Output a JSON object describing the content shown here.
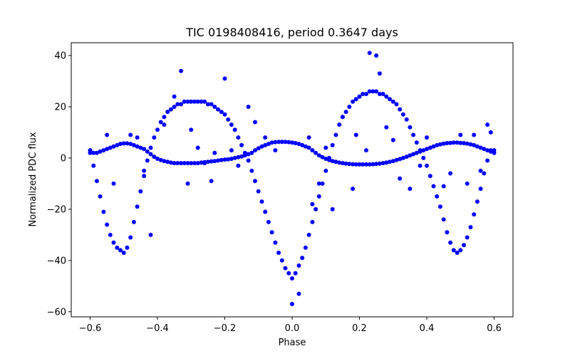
{
  "chart_data": {
    "type": "scatter",
    "title": "TIC 0198408416, period 0.3647 days",
    "xlabel": "Phase",
    "ylabel": "Normalized PDC flux",
    "xlim": [
      -0.656,
      0.656
    ],
    "ylim": [
      -62,
      45
    ],
    "xticks": [
      -0.6,
      -0.4,
      -0.2,
      0.0,
      0.2,
      0.4,
      0.6
    ],
    "xtick_labels": [
      "−0.6",
      "−0.4",
      "−0.2",
      "0.0",
      "0.2",
      "0.4",
      "0.6"
    ],
    "yticks": [
      -60,
      -40,
      -20,
      0,
      20,
      40
    ],
    "ytick_labels": [
      "−60",
      "−40",
      "−20",
      "0",
      "20",
      "40"
    ],
    "grid": false,
    "marker_color": "#0000ff",
    "series": [
      {
        "role": "main eclipse branch",
        "x": [
          -0.6,
          -0.59,
          -0.58,
          -0.57,
          -0.56,
          -0.55,
          -0.54,
          -0.53,
          -0.52,
          -0.51,
          -0.5,
          -0.49,
          -0.48,
          -0.47,
          -0.46,
          -0.45,
          -0.44,
          -0.43,
          -0.42,
          -0.41,
          -0.4,
          -0.39,
          -0.38,
          -0.37,
          -0.36,
          -0.35,
          -0.34,
          -0.33,
          -0.32,
          -0.31,
          -0.3,
          -0.29,
          -0.28,
          -0.27,
          -0.26,
          -0.25,
          -0.24,
          -0.23,
          -0.22,
          -0.21,
          -0.2,
          -0.19,
          -0.18,
          -0.17,
          -0.16,
          -0.15,
          -0.14,
          -0.13,
          -0.12,
          -0.11,
          -0.1,
          -0.09,
          -0.08,
          -0.07,
          -0.06,
          -0.05,
          -0.04,
          -0.03,
          -0.02,
          -0.01,
          0.0,
          0.01,
          0.02,
          0.03,
          0.04,
          0.05,
          0.06,
          0.07,
          0.08,
          0.09,
          0.1,
          0.11,
          0.12,
          0.13,
          0.14,
          0.15,
          0.16,
          0.17,
          0.18,
          0.19,
          0.2,
          0.21,
          0.22,
          0.23,
          0.24,
          0.25,
          0.26,
          0.27,
          0.28,
          0.29,
          0.3,
          0.31,
          0.32,
          0.33,
          0.34,
          0.35,
          0.36,
          0.37,
          0.38,
          0.39,
          0.4,
          0.41,
          0.42,
          0.43,
          0.44,
          0.45,
          0.46,
          0.47,
          0.48,
          0.49,
          0.5,
          0.51,
          0.52,
          0.53,
          0.54,
          0.55,
          0.56,
          0.57,
          0.58,
          0.59,
          0.6
        ],
        "y": [
          3,
          -3,
          -9,
          -15,
          -21,
          -26,
          -30,
          -33,
          -35,
          -36,
          -37,
          -35,
          -31,
          -25,
          -19,
          -13,
          -7,
          -1,
          4,
          8,
          11,
          14,
          16,
          18,
          19,
          20,
          21,
          21,
          22,
          22,
          22,
          22,
          22,
          22,
          22,
          21,
          21,
          20,
          19,
          18,
          17,
          15,
          13,
          11,
          8,
          5,
          2,
          -1,
          -5,
          -9,
          -13,
          -17,
          -21,
          -25,
          -29,
          -33,
          -37,
          -40,
          -43,
          -45,
          -47,
          -45,
          -42,
          -39,
          -35,
          -30,
          -25,
          -20,
          -15,
          -10,
          -5,
          0,
          5,
          9,
          13,
          16,
          18,
          20,
          22,
          23,
          24,
          25,
          25,
          26,
          26,
          26,
          25,
          25,
          24,
          23,
          22,
          21,
          19,
          17,
          15,
          12,
          9,
          6,
          3,
          0,
          -3,
          -7,
          -11,
          -15,
          -19,
          -24,
          -29,
          -33,
          -36,
          -37,
          -36,
          -34,
          -31,
          -27,
          -22,
          -17,
          -12,
          -6,
          -1,
          3,
          3
        ]
      },
      {
        "role": "secondary flat branch",
        "x": [
          -0.6,
          -0.59,
          -0.58,
          -0.57,
          -0.56,
          -0.55,
          -0.54,
          -0.53,
          -0.52,
          -0.51,
          -0.5,
          -0.49,
          -0.48,
          -0.47,
          -0.46,
          -0.45,
          -0.44,
          -0.43,
          -0.42,
          -0.41,
          -0.4,
          -0.39,
          -0.38,
          -0.37,
          -0.36,
          -0.35,
          -0.34,
          -0.33,
          -0.32,
          -0.31,
          -0.3,
          -0.29,
          -0.28,
          -0.27,
          -0.26,
          -0.25,
          -0.24,
          -0.23,
          -0.22,
          -0.21,
          -0.2,
          -0.19,
          -0.18,
          -0.17,
          -0.16,
          -0.15,
          -0.14,
          -0.13,
          -0.12,
          -0.11,
          -0.1,
          -0.09,
          -0.08,
          -0.07,
          -0.06,
          -0.05,
          -0.04,
          -0.03,
          -0.02,
          -0.01,
          0.0,
          0.01,
          0.02,
          0.03,
          0.04,
          0.05,
          0.06,
          0.07,
          0.08,
          0.09,
          0.1,
          0.11,
          0.12,
          0.13,
          0.14,
          0.15,
          0.16,
          0.17,
          0.18,
          0.19,
          0.2,
          0.21,
          0.22,
          0.23,
          0.24,
          0.25,
          0.26,
          0.27,
          0.28,
          0.29,
          0.3,
          0.31,
          0.32,
          0.33,
          0.34,
          0.35,
          0.36,
          0.37,
          0.38,
          0.39,
          0.4,
          0.41,
          0.42,
          0.43,
          0.44,
          0.45,
          0.46,
          0.47,
          0.48,
          0.49,
          0.5,
          0.51,
          0.52,
          0.53,
          0.54,
          0.55,
          0.56,
          0.57,
          0.58,
          0.59,
          0.6
        ],
        "y": [
          2,
          2,
          2,
          2.5,
          3,
          3.5,
          4,
          4.5,
          5,
          5.5,
          5.7,
          5.7,
          5.5,
          5,
          4.5,
          4,
          3.5,
          2.5,
          1.5,
          0.5,
          -0.3,
          -0.8,
          -1.2,
          -1.5,
          -1.8,
          -2,
          -2,
          -2,
          -2,
          -2,
          -2,
          -2,
          -2,
          -1.8,
          -1.6,
          -1.5,
          -1.3,
          -1.2,
          -1,
          -0.8,
          -0.6,
          -0.5,
          -0.3,
          0,
          0.3,
          0.6,
          1,
          1.5,
          2,
          3,
          3.8,
          4.5,
          5,
          5.5,
          6,
          6.2,
          6.3,
          6.3,
          6.3,
          6.2,
          6,
          5.8,
          5.5,
          5,
          4.5,
          4,
          3,
          2,
          1,
          0.3,
          -0.3,
          -0.8,
          -1.2,
          -1.5,
          -1.8,
          -2,
          -2.2,
          -2.3,
          -2.4,
          -2.5,
          -2.5,
          -2.5,
          -2.5,
          -2.5,
          -2.4,
          -2.3,
          -2.2,
          -2,
          -1.8,
          -1.5,
          -1.2,
          -0.8,
          -0.4,
          0,
          0.5,
          1,
          1.5,
          2,
          2.5,
          3,
          3.5,
          4,
          4.5,
          5,
          5.3,
          5.6,
          5.8,
          5.9,
          6,
          6,
          5.9,
          5.8,
          5.6,
          5.3,
          5,
          4.5,
          4,
          3.5,
          3,
          2.5,
          2
        ]
      },
      {
        "role": "outliers",
        "x": [
          -0.55,
          -0.53,
          -0.48,
          -0.46,
          -0.44,
          -0.42,
          -0.38,
          -0.35,
          -0.33,
          -0.31,
          -0.3,
          -0.28,
          -0.26,
          -0.24,
          -0.23,
          -0.2,
          -0.18,
          -0.16,
          -0.13,
          -0.11,
          -0.08,
          -0.05,
          0.0,
          0.02,
          0.05,
          0.06,
          0.08,
          0.1,
          0.12,
          0.15,
          0.18,
          0.19,
          0.22,
          0.23,
          0.25,
          0.26,
          0.28,
          0.3,
          0.32,
          0.35,
          0.38,
          0.4,
          0.45,
          0.47,
          0.5,
          0.52,
          0.54,
          0.56,
          0.58,
          0.59
        ],
        "y": [
          9,
          -10,
          9,
          8,
          -5,
          -30,
          13,
          24,
          34,
          -10,
          11,
          4,
          -2,
          -9,
          2,
          31,
          3,
          -3,
          20,
          14,
          8,
          3,
          -57,
          -53,
          8,
          -18,
          -10,
          4,
          -20,
          16,
          -12,
          9,
          3,
          41,
          40,
          33,
          12,
          7,
          -8,
          -12,
          -3,
          8,
          -11,
          -6,
          9,
          -10,
          9,
          -5,
          13,
          10
        ]
      }
    ]
  }
}
